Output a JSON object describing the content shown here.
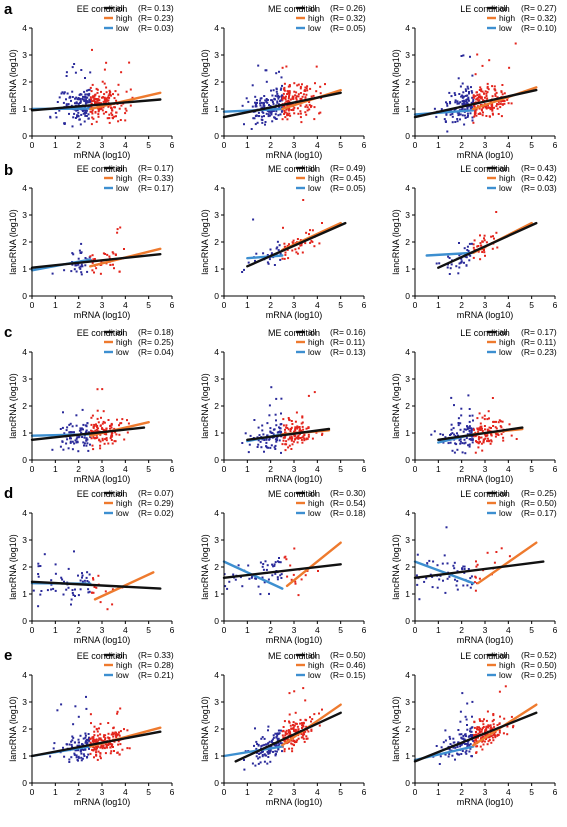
{
  "row_labels": [
    "a",
    "b",
    "c",
    "d",
    "e"
  ],
  "conditions": [
    "EE condition",
    "ME condition",
    "LE condition"
  ],
  "axis": {
    "xlabel": "mRNA (log10)",
    "ylabel": "lancRNA (log10)",
    "xlim": [
      0,
      6
    ],
    "xticks": [
      "0",
      "1",
      "2",
      "3",
      "4",
      "5",
      "6"
    ]
  },
  "series_colors": {
    "all": "#111111",
    "high": "#ee7a2e",
    "low": "#3d8fd0"
  },
  "point_colors": {
    "low": "#2a2a9a",
    "high": "#e3241c"
  },
  "legend_labels": [
    "all",
    "high",
    "low"
  ],
  "chart_data": [
    {
      "type": "scatter",
      "panel": "a",
      "title": "EE condition",
      "xlabel": "mRNA (log10)",
      "ylabel": "lancRNA (log10)",
      "xlim": [
        0,
        6
      ],
      "ylim": [
        0,
        4
      ],
      "yticks": [
        "0",
        "1",
        "2",
        "3",
        "4"
      ],
      "split_x": 2.5,
      "point_density": 300,
      "y_spread": 0.45,
      "series": [
        {
          "name": "all",
          "R": "0.13",
          "line": [
            [
              0,
              0.95
            ],
            [
              5.5,
              1.35
            ]
          ]
        },
        {
          "name": "high",
          "R": "0.23",
          "line": [
            [
              2.5,
              1.0
            ],
            [
              5.5,
              1.6
            ]
          ]
        },
        {
          "name": "low",
          "R": "0.03",
          "line": [
            [
              0,
              1.0
            ],
            [
              2.5,
              1.02
            ]
          ]
        }
      ]
    },
    {
      "type": "scatter",
      "panel": "a",
      "title": "ME condition",
      "xlabel": "mRNA (log10)",
      "ylabel": "lancRNA (log10)",
      "xlim": [
        0,
        6
      ],
      "ylim": [
        0,
        4
      ],
      "yticks": [
        "0",
        "1",
        "2",
        "3",
        "4"
      ],
      "split_x": 2.5,
      "point_density": 300,
      "y_spread": 0.45,
      "series": [
        {
          "name": "all",
          "R": "0.26",
          "line": [
            [
              0,
              0.7
            ],
            [
              5,
              1.6
            ]
          ]
        },
        {
          "name": "high",
          "R": "0.32",
          "line": [
            [
              2.5,
              1.0
            ],
            [
              5,
              1.7
            ]
          ]
        },
        {
          "name": "low",
          "R": "0.05",
          "line": [
            [
              0,
              0.9
            ],
            [
              2.5,
              1.0
            ]
          ]
        }
      ]
    },
    {
      "type": "scatter",
      "panel": "a",
      "title": "LE condition",
      "xlabel": "mRNA (log10)",
      "ylabel": "lancRNA (log10)",
      "xlim": [
        0,
        6
      ],
      "ylim": [
        0,
        4
      ],
      "yticks": [
        "0",
        "1",
        "2",
        "3",
        "4"
      ],
      "split_x": 2.5,
      "point_density": 300,
      "y_spread": 0.45,
      "series": [
        {
          "name": "all",
          "R": "0.27",
          "line": [
            [
              0,
              0.7
            ],
            [
              5.2,
              1.7
            ]
          ]
        },
        {
          "name": "high",
          "R": "0.32",
          "line": [
            [
              2.5,
              1.0
            ],
            [
              5.2,
              1.8
            ]
          ]
        },
        {
          "name": "low",
          "R": "0.10",
          "line": [
            [
              0,
              0.8
            ],
            [
              2.5,
              0.95
            ]
          ]
        }
      ]
    },
    {
      "type": "scatter",
      "panel": "b",
      "title": "EE condition",
      "xlabel": "mRNA (log10)",
      "ylabel": "lancRNA (log10)",
      "xlim": [
        0,
        6
      ],
      "ylim": [
        0,
        4
      ],
      "yticks": [
        "0",
        "1",
        "2",
        "3",
        "4"
      ],
      "split_x": 2.5,
      "point_density": 75,
      "y_spread": 0.35,
      "series": [
        {
          "name": "all",
          "R": "0.17",
          "line": [
            [
              0,
              1.05
            ],
            [
              5.5,
              1.55
            ]
          ]
        },
        {
          "name": "high",
          "R": "0.33",
          "line": [
            [
              2.5,
              1.1
            ],
            [
              5.5,
              1.75
            ]
          ]
        },
        {
          "name": "low",
          "R": "0.17",
          "line": [
            [
              0,
              0.95
            ],
            [
              2.5,
              1.35
            ]
          ]
        }
      ]
    },
    {
      "type": "scatter",
      "panel": "b",
      "title": "ME condition",
      "xlabel": "mRNA (log10)",
      "ylabel": "lancRNA (log10)",
      "xlim": [
        0,
        6
      ],
      "ylim": [
        0,
        4
      ],
      "yticks": [
        "0",
        "1",
        "2",
        "3",
        "4"
      ],
      "split_x": 2.5,
      "point_density": 75,
      "y_spread": 0.35,
      "series": [
        {
          "name": "all",
          "R": "0.49",
          "line": [
            [
              1,
              1.1
            ],
            [
              5.2,
              2.7
            ]
          ]
        },
        {
          "name": "high",
          "R": "0.45",
          "line": [
            [
              2.5,
              1.7
            ],
            [
              5,
              2.7
            ]
          ]
        },
        {
          "name": "low",
          "R": "0.05",
          "line": [
            [
              1,
              1.4
            ],
            [
              2.5,
              1.5
            ]
          ]
        }
      ]
    },
    {
      "type": "scatter",
      "panel": "b",
      "title": "LE condition",
      "xlabel": "mRNA (log10)",
      "ylabel": "lancRNA (log10)",
      "xlim": [
        0,
        6
      ],
      "ylim": [
        0,
        4
      ],
      "yticks": [
        "0",
        "1",
        "2",
        "3",
        "4"
      ],
      "split_x": 2.5,
      "point_density": 75,
      "y_spread": 0.35,
      "series": [
        {
          "name": "all",
          "R": "0.43",
          "line": [
            [
              1,
              1.05
            ],
            [
              5.2,
              2.7
            ]
          ]
        },
        {
          "name": "high",
          "R": "0.42",
          "line": [
            [
              2.5,
              1.6
            ],
            [
              5,
              2.7
            ]
          ]
        },
        {
          "name": "low",
          "R": "0.03",
          "line": [
            [
              0.5,
              1.5
            ],
            [
              2.5,
              1.6
            ]
          ]
        }
      ]
    },
    {
      "type": "scatter",
      "panel": "c",
      "title": "EE condition",
      "xlabel": "mRNA (log10)",
      "ylabel": "lancRNA (log10)",
      "xlim": [
        0,
        6
      ],
      "ylim": [
        0,
        4
      ],
      "yticks": [
        "0",
        "1",
        "2",
        "3",
        "4"
      ],
      "split_x": 2.5,
      "point_density": 200,
      "y_spread": 0.4,
      "series": [
        {
          "name": "all",
          "R": "0.18",
          "line": [
            [
              0,
              0.75
            ],
            [
              4.8,
              1.2
            ]
          ]
        },
        {
          "name": "high",
          "R": "0.25",
          "line": [
            [
              2.5,
              0.9
            ],
            [
              5,
              1.4
            ]
          ]
        },
        {
          "name": "low",
          "R": "0.04",
          "line": [
            [
              0,
              0.9
            ],
            [
              2.5,
              0.95
            ]
          ]
        }
      ]
    },
    {
      "type": "scatter",
      "panel": "c",
      "title": "ME condition",
      "xlabel": "mRNA (log10)",
      "ylabel": "lancRNA (log10)",
      "xlim": [
        0,
        6
      ],
      "ylim": [
        0,
        4
      ],
      "yticks": [
        "0",
        "1",
        "2",
        "3",
        "4"
      ],
      "split_x": 2.5,
      "point_density": 200,
      "y_spread": 0.4,
      "series": [
        {
          "name": "all",
          "R": "0.16",
          "line": [
            [
              1,
              0.75
            ],
            [
              4.5,
              1.15
            ]
          ]
        },
        {
          "name": "high",
          "R": "0.11",
          "line": [
            [
              2.5,
              0.95
            ],
            [
              4.5,
              1.1
            ]
          ]
        },
        {
          "name": "low",
          "R": "0.13",
          "line": [
            [
              1,
              0.7
            ],
            [
              2.5,
              0.95
            ]
          ]
        }
      ]
    },
    {
      "type": "scatter",
      "panel": "c",
      "title": "LE condition",
      "xlabel": "mRNA (log10)",
      "ylabel": "lancRNA (log10)",
      "xlim": [
        0,
        6
      ],
      "ylim": [
        0,
        4
      ],
      "yticks": [
        "0",
        "1",
        "2",
        "3",
        "4"
      ],
      "split_x": 2.5,
      "point_density": 200,
      "y_spread": 0.4,
      "series": [
        {
          "name": "all",
          "R": "0.17",
          "line": [
            [
              1,
              0.75
            ],
            [
              4.6,
              1.2
            ]
          ]
        },
        {
          "name": "high",
          "R": "0.11",
          "line": [
            [
              2.5,
              0.95
            ],
            [
              4.6,
              1.15
            ]
          ]
        },
        {
          "name": "low",
          "R": "0.23",
          "line": [
            [
              1,
              0.65
            ],
            [
              2.5,
              0.95
            ]
          ]
        }
      ]
    },
    {
      "type": "scatter",
      "panel": "d",
      "title": "EE condition",
      "xlabel": "mRNA (log10)",
      "ylabel": "lancRNA (log10)",
      "xlim": [
        0,
        6
      ],
      "ylim": [
        0,
        4
      ],
      "yticks": [
        "0",
        "1",
        "2",
        "3",
        "4"
      ],
      "split_x": 2.5,
      "point_density": 70,
      "y_spread": 0.5,
      "series": [
        {
          "name": "all",
          "R": "0.07",
          "line": [
            [
              0,
              1.45
            ],
            [
              5.5,
              1.2
            ]
          ]
        },
        {
          "name": "high",
          "R": "0.29",
          "line": [
            [
              2.7,
              0.8
            ],
            [
              5.2,
              1.8
            ]
          ]
        },
        {
          "name": "low",
          "R": "0.02",
          "line": [
            [
              0,
              1.4
            ],
            [
              2.5,
              1.38
            ]
          ]
        }
      ]
    },
    {
      "type": "scatter",
      "panel": "d",
      "title": "ME condition",
      "xlabel": "mRNA (log10)",
      "ylabel": "lancRNA (log10)",
      "xlim": [
        0,
        6
      ],
      "ylim": [
        0,
        4
      ],
      "yticks": [
        "0",
        "1",
        "2",
        "3",
        "4"
      ],
      "split_x": 2.5,
      "point_density": 70,
      "y_spread": 0.5,
      "series": [
        {
          "name": "all",
          "R": "0.30",
          "line": [
            [
              0,
              1.6
            ],
            [
              5,
              2.1
            ]
          ]
        },
        {
          "name": "high",
          "R": "0.54",
          "line": [
            [
              2.7,
              1.3
            ],
            [
              5,
              2.9
            ]
          ]
        },
        {
          "name": "low",
          "R": "0.18",
          "line": [
            [
              0,
              2.2
            ],
            [
              2.5,
              1.2
            ]
          ]
        }
      ]
    },
    {
      "type": "scatter",
      "panel": "d",
      "title": "LE condition",
      "xlabel": "mRNA (log10)",
      "ylabel": "lancRNA (log10)",
      "xlim": [
        0,
        6
      ],
      "ylim": [
        0,
        4
      ],
      "yticks": [
        "0",
        "1",
        "2",
        "3",
        "4"
      ],
      "split_x": 2.5,
      "point_density": 70,
      "y_spread": 0.5,
      "series": [
        {
          "name": "all",
          "R": "0.25",
          "line": [
            [
              0,
              1.6
            ],
            [
              5.5,
              2.2
            ]
          ]
        },
        {
          "name": "high",
          "R": "0.50",
          "line": [
            [
              2.7,
              1.4
            ],
            [
              5.2,
              2.9
            ]
          ]
        },
        {
          "name": "low",
          "R": "0.17",
          "line": [
            [
              0,
              2.2
            ],
            [
              2.5,
              1.4
            ]
          ]
        }
      ]
    },
    {
      "type": "scatter",
      "panel": "e",
      "title": "EE condition",
      "xlabel": "mRNA (log10)",
      "ylabel": "lancRNA (log10)",
      "xlim": [
        0,
        6
      ],
      "ylim": [
        0,
        4
      ],
      "yticks": [
        "0",
        "1",
        "2",
        "3",
        "4"
      ],
      "split_x": 2.5,
      "point_density": 250,
      "y_spread": 0.4,
      "series": [
        {
          "name": "all",
          "R": "0.33",
          "line": [
            [
              0,
              1.0
            ],
            [
              5.5,
              1.9
            ]
          ]
        },
        {
          "name": "high",
          "R": "0.28",
          "line": [
            [
              2.5,
              1.35
            ],
            [
              5.5,
              2.05
            ]
          ]
        },
        {
          "name": "low",
          "R": "0.21",
          "line": [
            [
              0,
              1.0
            ],
            [
              2.5,
              1.35
            ]
          ]
        }
      ]
    },
    {
      "type": "scatter",
      "panel": "e",
      "title": "ME condition",
      "xlabel": "mRNA (log10)",
      "ylabel": "lancRNA (log10)",
      "xlim": [
        0,
        6
      ],
      "ylim": [
        0,
        4
      ],
      "yticks": [
        "0",
        "1",
        "2",
        "3",
        "4"
      ],
      "split_x": 2.5,
      "point_density": 250,
      "y_spread": 0.4,
      "series": [
        {
          "name": "all",
          "R": "0.50",
          "line": [
            [
              0.5,
              0.8
            ],
            [
              5,
              2.6
            ]
          ]
        },
        {
          "name": "high",
          "R": "0.46",
          "line": [
            [
              2.5,
              1.4
            ],
            [
              5,
              2.9
            ]
          ]
        },
        {
          "name": "low",
          "R": "0.15",
          "line": [
            [
              0,
              1.0
            ],
            [
              2.5,
              1.35
            ]
          ]
        }
      ]
    },
    {
      "type": "scatter",
      "panel": "e",
      "title": "LE condition",
      "xlabel": "mRNA (log10)",
      "ylabel": "lancRNA (log10)",
      "xlim": [
        0,
        6
      ],
      "ylim": [
        0,
        4
      ],
      "yticks": [
        "0",
        "1",
        "2",
        "3",
        "4"
      ],
      "split_x": 2.5,
      "point_density": 250,
      "y_spread": 0.4,
      "series": [
        {
          "name": "all",
          "R": "0.52",
          "line": [
            [
              0,
              0.8
            ],
            [
              5.2,
              2.6
            ]
          ]
        },
        {
          "name": "high",
          "R": "0.50",
          "line": [
            [
              2.5,
              1.4
            ],
            [
              5.2,
              2.9
            ]
          ]
        },
        {
          "name": "low",
          "R": "0.25",
          "line": [
            [
              0,
              0.85
            ],
            [
              2.5,
              1.35
            ]
          ]
        }
      ]
    }
  ]
}
